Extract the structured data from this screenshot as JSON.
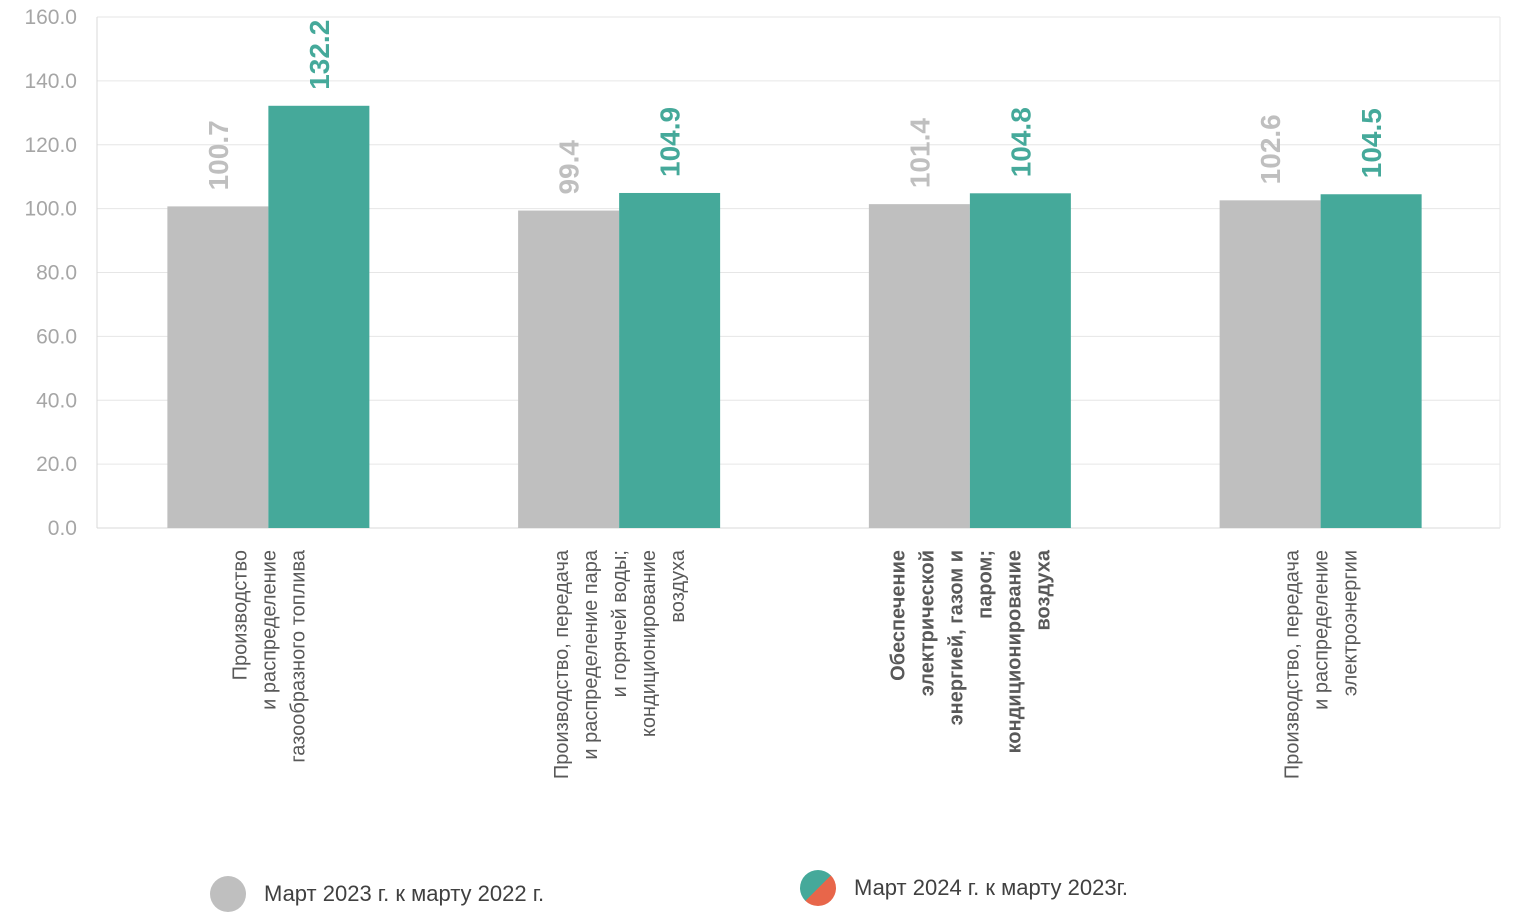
{
  "chart_data": {
    "type": "bar",
    "ylim": [
      0,
      160
    ],
    "yticks": [
      "0.0",
      "20.0",
      "40.0",
      "60.0",
      "80.0",
      "100.0",
      "120.0",
      "140.0",
      "160.0"
    ],
    "grid": true,
    "legend_position": "bottom",
    "categories": [
      {
        "lines": [
          "Производство",
          "и распределение",
          "газообразного топлива"
        ],
        "bold": false
      },
      {
        "lines": [
          "Производство, передача",
          "и распределение пара",
          "и горячей воды;",
          "кондиционирование",
          "воздуха"
        ],
        "bold": false
      },
      {
        "lines": [
          "Обеспечение",
          "электрической",
          "энергией, газом и",
          "паром;",
          "кондиционирование",
          "воздуха"
        ],
        "bold": true
      },
      {
        "lines": [
          "Производство, передача",
          "и распределение",
          "электроэнергии"
        ],
        "bold": false
      }
    ],
    "series": [
      {
        "name": "Март 2023 г. к марту 2022 г.",
        "values": [
          100.7,
          99.4,
          101.4,
          102.6
        ],
        "labels": [
          "100.7",
          "99.4",
          "101.4",
          "102.6"
        ],
        "color": "#bfbfbf",
        "label_color": "#bfbfbf"
      },
      {
        "name": "Март 2024 г. к марту 2023г.",
        "values": [
          132.2,
          104.9,
          104.8,
          104.5
        ],
        "labels": [
          "132.2",
          "104.9",
          "104.8",
          "104.5"
        ],
        "color": "#45a99a",
        "label_color": "#45a99a",
        "legend_color2": "#e8664a"
      }
    ]
  }
}
